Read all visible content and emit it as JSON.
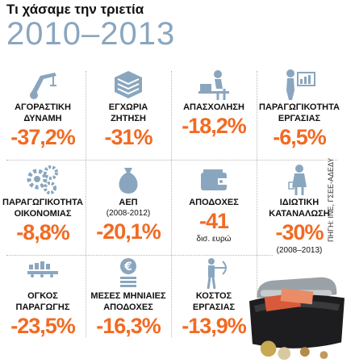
{
  "header": {
    "title": "Τι χάσαμε την τριετία",
    "years": "2010–2013"
  },
  "source": "ΠΗΓΗ: ΙΝΕ, ΓΣΕΕ-ΑΔΕΔΥ",
  "items": [
    {
      "label1": "ΑΓΟΡΑΣΤΙΚΗ",
      "label2": "ΔΥΝΑΜΗ",
      "note": "",
      "value": "-37,2%",
      "unit": "",
      "icon": "crane-icon"
    },
    {
      "label1": "ΕΓΧΩΡΙΑ",
      "label2": "ΖΗΤΗΣΗ",
      "note": "",
      "value": "-31%",
      "unit": "",
      "icon": "greek-flag-cube-icon"
    },
    {
      "label1": "ΑΠΑΣΧΟΛΗΣΗ",
      "label2": "",
      "note": "",
      "value": "-18,2%",
      "unit": "",
      "icon": "worker-at-desk-icon"
    },
    {
      "label1": "ΠΑΡΑΓΩΓΙΚΟΤΗΤΑ",
      "label2": "ΕΡΓΑΣΙΑΣ",
      "note": "",
      "value": "-6,5%",
      "unit": "",
      "icon": "presenter-chart-icon"
    },
    {
      "label1": "ΠΑΡΑΓΩΓΙΚΟΤΗΤΑ",
      "label2": "ΟΙΚΟΝΟΜΙΑΣ",
      "note": "",
      "value": "-8,8%",
      "unit": "",
      "icon": "gears-icon"
    },
    {
      "label1": "ΑΕΠ",
      "label2": "",
      "note": "(2008-2012)",
      "value": "-20,1%",
      "unit": "",
      "icon": "money-bag-icon"
    },
    {
      "label1": "ΑΠΟΔΟΧΕΣ",
      "label2": "",
      "note": "",
      "value": "-41",
      "unit": "δισ. ευρώ",
      "icon": "wallet-icon"
    },
    {
      "label1": "ΙΔΙΩΤΙΚΗ",
      "label2": "ΚΑΤΑΝΑΛΩΣΗ",
      "note": "(2008–2013)",
      "value": "-30%",
      "unit": "",
      "icon": "shopper-icon"
    },
    {
      "label1": "ΟΓΚΟΣ",
      "label2": "ΠΑΡΑΓΩΓΗΣ",
      "note": "",
      "value": "-23,5%",
      "unit": "",
      "icon": "conveyor-icon"
    },
    {
      "label1": "ΜΕΣΕΣ ΜΗΝΙΑΙΕΣ",
      "label2": "ΑΠΟΔΟΧΕΣ",
      "note": "",
      "value": "-16,3%",
      "unit": "",
      "icon": "euro-coins-icon"
    },
    {
      "label1": "ΚΟΣΤΟΣ",
      "label2": "ΕΡΓΑΣΙΑΣ",
      "note": "",
      "value": "-13,9%",
      "unit": "",
      "icon": "archer-icon"
    }
  ],
  "colors": {
    "accent": "#f26a22",
    "icon": "#8aa6bf",
    "title_years": "#8aa6bf"
  }
}
